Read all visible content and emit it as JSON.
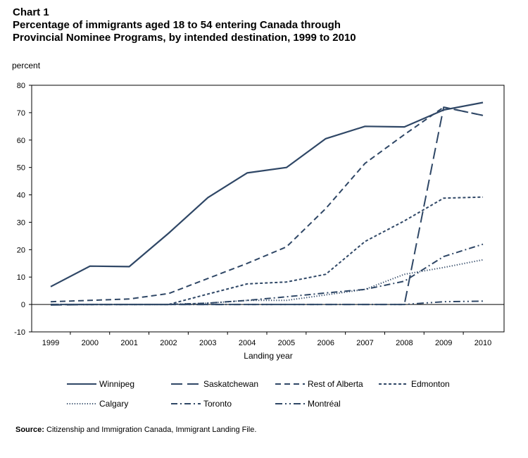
{
  "header": {
    "chart_number": "Chart 1",
    "title_line1": "Percentage of immigrants aged 18 to 54 entering Canada through",
    "title_line2": "Provincial Nominee Programs, by intended destination, 1999 to 2010"
  },
  "source": {
    "label": "Source:",
    "text": "Citizenship and Immigration Canada, Immigrant Landing File."
  },
  "colors": {
    "line": "#2f4766",
    "axis": "#000000"
  },
  "chart_data": {
    "type": "line",
    "ylabel": "percent",
    "xlabel": "Landing year",
    "ylim": [
      -10,
      80
    ],
    "yticks": [
      -10,
      0,
      10,
      20,
      30,
      40,
      50,
      60,
      70,
      80
    ],
    "x": [
      "1999",
      "2000",
      "2001",
      "2002",
      "2003",
      "2004",
      "2005",
      "2006",
      "2007",
      "2008",
      "2009",
      "2010"
    ],
    "grid": false,
    "legend_position": "bottom",
    "series": [
      {
        "name": "Winnipeg",
        "dash": "solid",
        "values": [
          6.5,
          14,
          13.8,
          26,
          39,
          48,
          50,
          60.5,
          65,
          64.8,
          71,
          73.7
        ]
      },
      {
        "name": "Saskatchewan",
        "dash": "long-dash",
        "values": [
          -0.2,
          0,
          0,
          0,
          0,
          0,
          0,
          0,
          0,
          0,
          72,
          69
        ]
      },
      {
        "name": "Rest of Alberta",
        "dash": "dash",
        "values": [
          1,
          1.5,
          2,
          4,
          9.5,
          15,
          21,
          35,
          51.5,
          62,
          72,
          69
        ]
      },
      {
        "name": "Edmonton",
        "dash": "short-dash",
        "values": [
          0,
          0,
          0,
          0,
          3.8,
          7.5,
          8.2,
          11,
          23,
          30.5,
          38.8,
          39.2
        ]
      },
      {
        "name": "Calgary",
        "dash": "dot",
        "values": [
          0,
          0,
          0,
          0,
          0.5,
          1.5,
          1.5,
          3.5,
          5.5,
          11,
          13.5,
          16.3
        ]
      },
      {
        "name": "Toronto",
        "dash": "dash-dot",
        "values": [
          0,
          0,
          0,
          0,
          0.5,
          1.5,
          2.8,
          4.2,
          5.5,
          8.5,
          17.5,
          22
        ]
      },
      {
        "name": "Montréal",
        "dash": "dash-dot-dot",
        "values": [
          0,
          0,
          0,
          0,
          0,
          0,
          0,
          0,
          0,
          0,
          1,
          1.2
        ]
      }
    ]
  }
}
